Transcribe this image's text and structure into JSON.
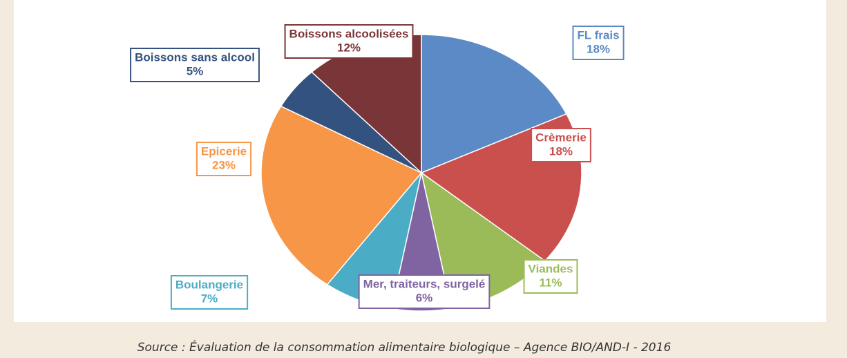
{
  "chart_data": {
    "type": "pie",
    "categories": [
      "FL frais",
      "Crèmerie",
      "Viandes",
      "Mer, traiteurs, surgelé",
      "Boulangerie",
      "Epicerie",
      "Boissons sans alcool",
      "Boissons alcoolisées"
    ],
    "values": [
      18,
      18,
      11,
      6,
      7,
      23,
      5,
      12
    ],
    "value_labels": [
      "18%",
      "18%",
      "11%",
      "6%",
      "7%",
      "23%",
      "5%",
      "12%"
    ],
    "colors": [
      "#5b8ac6",
      "#c9504d",
      "#9bbb59",
      "#8064a2",
      "#4bacc6",
      "#f79646",
      "#34527f",
      "#7a3538"
    ],
    "source": "Source : Évaluation de la consommation alimentaire biologique – Agence BIO/AND-I - 2016"
  }
}
